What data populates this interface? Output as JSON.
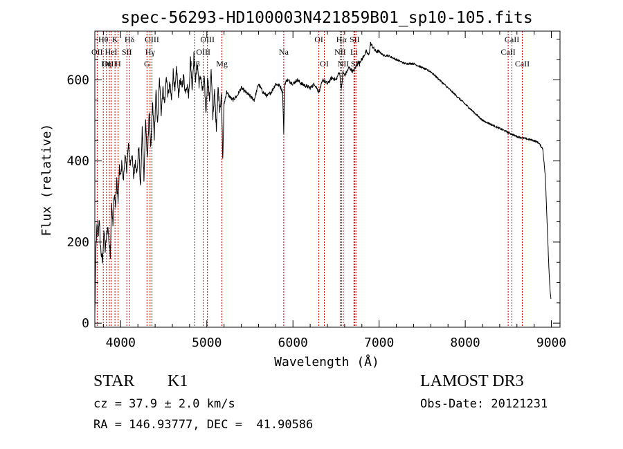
{
  "chart_data": {
    "type": "line",
    "title": "spec-56293-HD100003N421859B01_sp10-105.fits",
    "xlabel": "Wavelength (Å)",
    "ylabel": "Flux (relative)",
    "xlim": [
      3700,
      9100
    ],
    "ylim": [
      -10,
      720
    ],
    "x_ticks": [
      4000,
      5000,
      6000,
      7000,
      8000,
      9000
    ],
    "x_tick_labels": [
      "4000",
      "5000",
      "6000",
      "7000",
      "8000",
      "9000"
    ],
    "y_ticks": [
      0,
      200,
      400,
      600
    ],
    "y_tick_labels": [
      "0",
      "200",
      "400",
      "600"
    ],
    "line_color": "#000000",
    "marker_color": "#c00000",
    "series": [
      {
        "x": [
          3700,
          3712,
          3725,
          3738,
          3750,
          3762,
          3775,
          3790,
          3805,
          3820,
          3835,
          3850,
          3865,
          3880,
          3895,
          3910,
          3925,
          3940,
          3955,
          3970,
          3985,
          4000,
          4015,
          4030,
          4050,
          4070,
          4090,
          4110,
          4130,
          4150,
          4170,
          4190,
          4210,
          4230,
          4250,
          4270,
          4290,
          4310,
          4330,
          4350,
          4370,
          4390,
          4410,
          4430,
          4450,
          4470,
          4490,
          4510,
          4530,
          4550,
          4570,
          4590,
          4610,
          4630,
          4650,
          4670,
          4690,
          4710,
          4730,
          4750,
          4770,
          4790,
          4810,
          4830,
          4850,
          4870,
          4890,
          4910,
          4930,
          4950,
          4970,
          4990,
          5010,
          5030,
          5050,
          5070,
          5090,
          5110,
          5130,
          5150,
          5170,
          5185,
          5200,
          5230,
          5260,
          5300,
          5350,
          5400,
          5450,
          5500,
          5550,
          5600,
          5650,
          5700,
          5750,
          5800,
          5850,
          5880,
          5893,
          5905,
          5930,
          5970,
          6000,
          6050,
          6100,
          6150,
          6200,
          6250,
          6300,
          6350,
          6400,
          6450,
          6500,
          6540,
          6563,
          6580,
          6600,
          6650,
          6700,
          6750,
          6800,
          6850,
          6880,
          6900,
          6930,
          6960,
          7000,
          7050,
          7100,
          7150,
          7200,
          7300,
          7400,
          7500,
          7600,
          7700,
          7800,
          7900,
          8000,
          8100,
          8200,
          8300,
          8400,
          8500,
          8600,
          8700,
          8800,
          8850,
          8900,
          8930,
          8950,
          8970,
          8985,
          8995
        ],
        "y": [
          20,
          180,
          240,
          210,
          260,
          200,
          170,
          150,
          230,
          180,
          210,
          240,
          200,
          170,
          300,
          240,
          320,
          290,
          350,
          300,
          380,
          360,
          400,
          350,
          410,
          380,
          440,
          390,
          420,
          360,
          400,
          370,
          440,
          330,
          480,
          360,
          500,
          400,
          520,
          430,
          540,
          460,
          570,
          490,
          600,
          520,
          580,
          540,
          610,
          560,
          590,
          550,
          620,
          570,
          630,
          560,
          600,
          580,
          610,
          570,
          590,
          560,
          650,
          580,
          660,
          600,
          640,
          590,
          610,
          570,
          600,
          520,
          610,
          550,
          620,
          510,
          570,
          480,
          580,
          530,
          560,
          400,
          540,
          570,
          560,
          550,
          560,
          580,
          570,
          560,
          550,
          590,
          570,
          560,
          570,
          590,
          585,
          570,
          470,
          590,
          600,
          595,
          590,
          600,
          590,
          585,
          580,
          590,
          570,
          600,
          590,
          605,
          600,
          620,
          575,
          620,
          610,
          630,
          620,
          640,
          650,
          670,
          660,
          690,
          680,
          670,
          670,
          660,
          660,
          655,
          650,
          640,
          640,
          630,
          620,
          600,
          580,
          560,
          540,
          520,
          500,
          490,
          480,
          470,
          460,
          455,
          450,
          445,
          430,
          360,
          250,
          140,
          80,
          60
        ]
      }
    ],
    "spectral_lines": [
      {
        "label": "Hθ",
        "wavelength": 3798,
        "row": 0
      },
      {
        "label": "OII",
        "wavelength": 3727,
        "row": 1
      },
      {
        "label": "OIII",
        "wavelength": 3869,
        "row": 2
      },
      {
        "label": "Hη",
        "wavelength": 3835,
        "row": 2
      },
      {
        "label": "K",
        "wavelength": 3934,
        "row": 0
      },
      {
        "label": "HeI",
        "wavelength": 3889,
        "row": 1
      },
      {
        "label": "H",
        "wavelength": 3969,
        "row": 2
      },
      {
        "label": "SII",
        "wavelength": 4072,
        "row": 1
      },
      {
        "label": "Hδ",
        "wavelength": 4102,
        "row": 0
      },
      {
        "label": "OIII",
        "wavelength": 4363,
        "row": 0
      },
      {
        "label": "Hγ",
        "wavelength": 4341,
        "row": 1
      },
      {
        "label": "G",
        "wavelength": 4305,
        "row": 2
      },
      {
        "label": "Hβ",
        "wavelength": 4861,
        "row": 2
      },
      {
        "label": "OIII",
        "wavelength": 5007,
        "row": 0
      },
      {
        "label": "OIII",
        "wavelength": 4959,
        "row": 1
      },
      {
        "label": "Mg",
        "wavelength": 5175,
        "row": 2
      },
      {
        "label": "Na",
        "wavelength": 5893,
        "row": 1
      },
      {
        "label": "OI",
        "wavelength": 6300,
        "row": 0
      },
      {
        "label": "OI",
        "wavelength": 6364,
        "row": 2
      },
      {
        "label": "Hα",
        "wavelength": 6563,
        "row": 0
      },
      {
        "label": "NII",
        "wavelength": 6548,
        "row": 1
      },
      {
        "label": "NII",
        "wavelength": 6584,
        "row": 2
      },
      {
        "label": "SII",
        "wavelength": 6716,
        "row": 0
      },
      {
        "label": "Li",
        "wavelength": 6708,
        "row": 1
      },
      {
        "label": "SII",
        "wavelength": 6731,
        "row": 2
      },
      {
        "label": "CaII",
        "wavelength": 8542,
        "row": 0
      },
      {
        "label": "CaII",
        "wavelength": 8498,
        "row": 1
      },
      {
        "label": "CaII",
        "wavelength": 8662,
        "row": 2
      }
    ]
  },
  "info": {
    "object_class": "STAR",
    "subclass": "K1",
    "survey": "LAMOST DR3",
    "cz_line": "cz = 37.9 ± 2.0 km/s",
    "obs_date_line": "Obs-Date: 20121231",
    "radec_line": "RA = 146.93777, DEC =  41.90586"
  }
}
